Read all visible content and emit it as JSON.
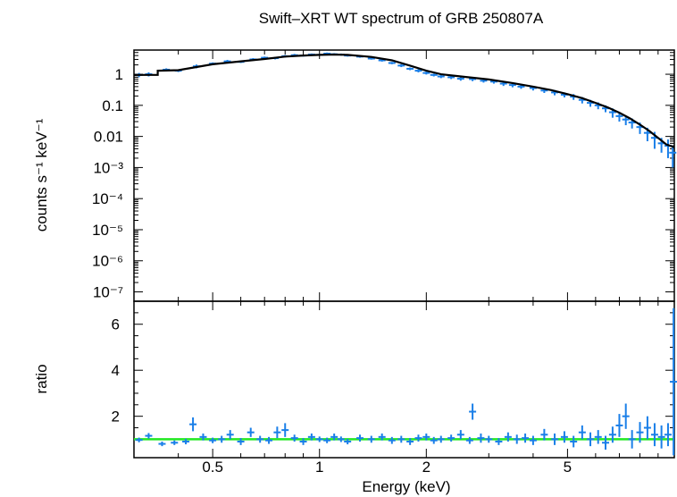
{
  "chart_data": [
    {
      "type": "scatter",
      "panel": "spectrum",
      "title": "Swift–XRT WT spectrum of GRB 250807A",
      "xlabel": "",
      "ylabel": "counts s⁻¹ keV⁻¹",
      "xscale": "log",
      "yscale": "log",
      "xlim": [
        0.3,
        10
      ],
      "ylim": [
        5e-08,
        6
      ],
      "y_tick_labels": [
        {
          "value": 1,
          "label": "1"
        },
        {
          "value": 0.1,
          "label": "0.1"
        },
        {
          "value": 0.01,
          "label": "0.01"
        },
        {
          "value": 0.001,
          "label": "10⁻³"
        },
        {
          "value": 0.0001,
          "label": "10⁻⁴"
        },
        {
          "value": 1e-05,
          "label": "10⁻⁵"
        },
        {
          "value": 1e-06,
          "label": "10⁻⁶"
        },
        {
          "value": 1e-07,
          "label": "10⁻⁷"
        }
      ],
      "series": [
        {
          "kind": "data",
          "color": "#1a7fe8",
          "x": [
            0.31,
            0.33,
            0.37,
            0.4,
            0.45,
            0.5,
            0.55,
            0.6,
            0.65,
            0.7,
            0.75,
            0.8,
            0.85,
            0.9,
            0.95,
            1.0,
            1.05,
            1.1,
            1.15,
            1.2,
            1.3,
            1.4,
            1.5,
            1.6,
            1.7,
            1.8,
            1.9,
            2.0,
            2.1,
            2.2,
            2.35,
            2.5,
            2.7,
            2.9,
            3.1,
            3.3,
            3.5,
            3.7,
            4.0,
            4.3,
            4.6,
            4.9,
            5.2,
            5.5,
            5.8,
            6.1,
            6.4,
            6.7,
            7.0,
            7.3,
            7.6,
            8.0,
            8.4,
            8.8,
            9.2,
            9.6,
            9.9
          ],
          "y": [
            0.95,
            1.0,
            1.4,
            1.3,
            1.8,
            2.2,
            2.6,
            2.5,
            3.0,
            3.4,
            3.3,
            3.8,
            4.1,
            4.0,
            4.3,
            4.2,
            4.6,
            4.4,
            4.3,
            4.0,
            3.7,
            3.2,
            2.8,
            2.3,
            1.9,
            1.5,
            1.3,
            1.1,
            0.95,
            0.85,
            0.8,
            0.72,
            0.7,
            0.62,
            0.58,
            0.5,
            0.45,
            0.4,
            0.36,
            0.3,
            0.26,
            0.22,
            0.19,
            0.15,
            0.12,
            0.1,
            0.08,
            0.06,
            0.045,
            0.035,
            0.028,
            0.02,
            0.013,
            0.009,
            0.006,
            0.005,
            0.003
          ],
          "y_err": [
            0.15,
            0.15,
            0.15,
            0.12,
            0.25,
            0.2,
            0.3,
            0.2,
            0.3,
            0.3,
            0.3,
            0.35,
            0.4,
            0.3,
            0.35,
            0.3,
            0.4,
            0.35,
            0.35,
            0.3,
            0.3,
            0.25,
            0.25,
            0.2,
            0.2,
            0.15,
            0.15,
            0.12,
            0.1,
            0.1,
            0.1,
            0.1,
            0.1,
            0.08,
            0.08,
            0.08,
            0.07,
            0.06,
            0.06,
            0.05,
            0.05,
            0.04,
            0.04,
            0.035,
            0.03,
            0.025,
            0.02,
            0.02,
            0.015,
            0.012,
            0.01,
            0.008,
            0.006,
            0.005,
            0.003,
            0.003,
            0.002
          ]
        },
        {
          "kind": "model",
          "color": "#000000",
          "x": [
            0.3,
            0.35,
            0.35,
            0.4,
            0.45,
            0.5,
            0.6,
            0.7,
            0.8,
            0.9,
            1.0,
            1.1,
            1.2,
            1.4,
            1.6,
            1.8,
            2.0,
            2.2,
            2.5,
            3.0,
            3.5,
            4.0,
            4.5,
            5.0,
            5.5,
            6.0,
            6.5,
            7.0,
            7.5,
            8.0,
            8.5,
            9.0,
            9.5,
            10.0
          ],
          "y": [
            0.95,
            0.95,
            1.3,
            1.35,
            1.7,
            2.1,
            2.6,
            3.1,
            3.7,
            4.0,
            4.2,
            4.3,
            4.2,
            3.6,
            2.8,
            1.9,
            1.3,
            1.0,
            0.85,
            0.68,
            0.52,
            0.4,
            0.31,
            0.23,
            0.17,
            0.12,
            0.085,
            0.058,
            0.038,
            0.024,
            0.015,
            0.009,
            0.0055,
            0.0045
          ]
        }
      ]
    },
    {
      "type": "scatter",
      "panel": "ratio",
      "title": "",
      "xlabel": "Energy (keV)",
      "ylabel": "ratio",
      "xscale": "log",
      "yscale": "linear",
      "xlim": [
        0.3,
        10
      ],
      "ylim": [
        0.2,
        7
      ],
      "x_tick_labels": [
        {
          "value": 0.5,
          "label": "0.5"
        },
        {
          "value": 1,
          "label": "1"
        },
        {
          "value": 2,
          "label": "2"
        },
        {
          "value": 5,
          "label": "5"
        }
      ],
      "y_tick_labels": [
        {
          "value": 2,
          "label": "2"
        },
        {
          "value": 4,
          "label": "4"
        },
        {
          "value": 6,
          "label": "6"
        }
      ],
      "reference_line": {
        "y": 1,
        "color": "#22e822"
      },
      "series": [
        {
          "kind": "ratio",
          "color": "#1a7fe8",
          "x": [
            0.31,
            0.33,
            0.36,
            0.39,
            0.42,
            0.44,
            0.47,
            0.5,
            0.53,
            0.56,
            0.6,
            0.64,
            0.68,
            0.72,
            0.76,
            0.8,
            0.85,
            0.9,
            0.95,
            1.0,
            1.05,
            1.1,
            1.15,
            1.2,
            1.3,
            1.4,
            1.5,
            1.6,
            1.7,
            1.8,
            1.9,
            2.0,
            2.1,
            2.2,
            2.35,
            2.5,
            2.65,
            2.7,
            2.85,
            3.0,
            3.2,
            3.4,
            3.6,
            3.8,
            4.0,
            4.3,
            4.6,
            4.9,
            5.2,
            5.5,
            5.8,
            6.1,
            6.4,
            6.7,
            7.0,
            7.3,
            7.6,
            8.0,
            8.4,
            8.8,
            9.2,
            9.6,
            9.95
          ],
          "y": [
            0.97,
            1.15,
            0.8,
            0.85,
            0.9,
            1.65,
            1.1,
            0.95,
            1.0,
            1.2,
            0.9,
            1.3,
            1.0,
            0.95,
            1.3,
            1.4,
            1.05,
            0.9,
            1.1,
            1.0,
            0.95,
            1.1,
            1.0,
            0.9,
            1.05,
            1.0,
            1.1,
            0.95,
            1.0,
            0.9,
            1.05,
            1.1,
            0.95,
            1.0,
            1.05,
            1.2,
            0.95,
            2.2,
            1.05,
            1.0,
            0.9,
            1.1,
            1.0,
            1.05,
            0.95,
            1.2,
            1.0,
            1.1,
            0.9,
            1.3,
            1.0,
            1.1,
            0.85,
            1.2,
            1.6,
            2.0,
            1.0,
            1.3,
            1.5,
            1.2,
            1.1,
            1.2,
            3.5
          ],
          "y_err": [
            0.1,
            0.12,
            0.1,
            0.1,
            0.12,
            0.3,
            0.15,
            0.12,
            0.15,
            0.2,
            0.15,
            0.2,
            0.15,
            0.15,
            0.25,
            0.3,
            0.15,
            0.15,
            0.15,
            0.12,
            0.12,
            0.15,
            0.12,
            0.12,
            0.15,
            0.15,
            0.15,
            0.15,
            0.15,
            0.15,
            0.15,
            0.15,
            0.15,
            0.15,
            0.15,
            0.2,
            0.15,
            0.35,
            0.2,
            0.15,
            0.15,
            0.2,
            0.2,
            0.2,
            0.2,
            0.25,
            0.25,
            0.25,
            0.25,
            0.3,
            0.3,
            0.3,
            0.3,
            0.35,
            0.5,
            0.55,
            0.4,
            0.45,
            0.5,
            0.5,
            0.5,
            0.5,
            3.2
          ]
        }
      ]
    }
  ]
}
